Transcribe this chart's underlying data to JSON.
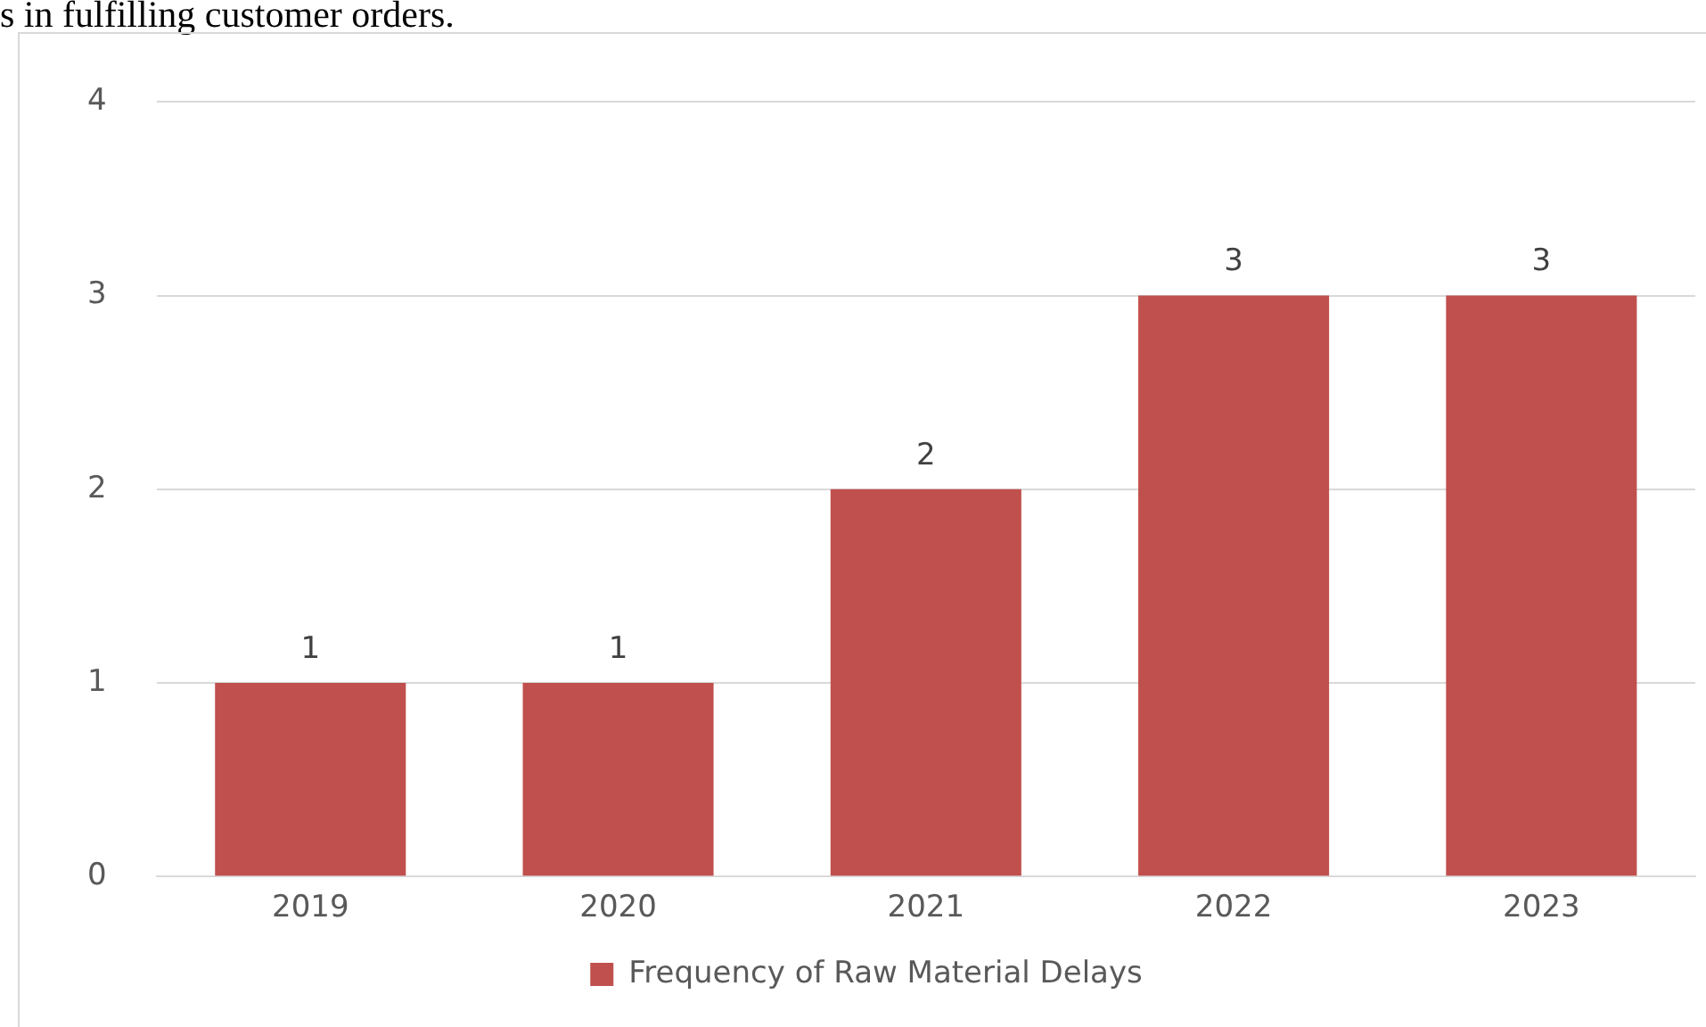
{
  "chart_data": {
    "type": "bar",
    "annotations": [
      "s in fulfilling customer orders."
    ],
    "categories": [
      "2019",
      "2020",
      "2021",
      "2022",
      "2023"
    ],
    "series": [
      {
        "name": "Frequency of Raw Material Delays",
        "color": "#c0504d",
        "values": [
          1,
          1,
          2,
          3,
          3
        ]
      }
    ],
    "ylim": [
      0,
      4
    ],
    "yticks": [
      0,
      1,
      2,
      3,
      4
    ],
    "grid": "y",
    "legend": "bottom",
    "data_labels": true
  }
}
